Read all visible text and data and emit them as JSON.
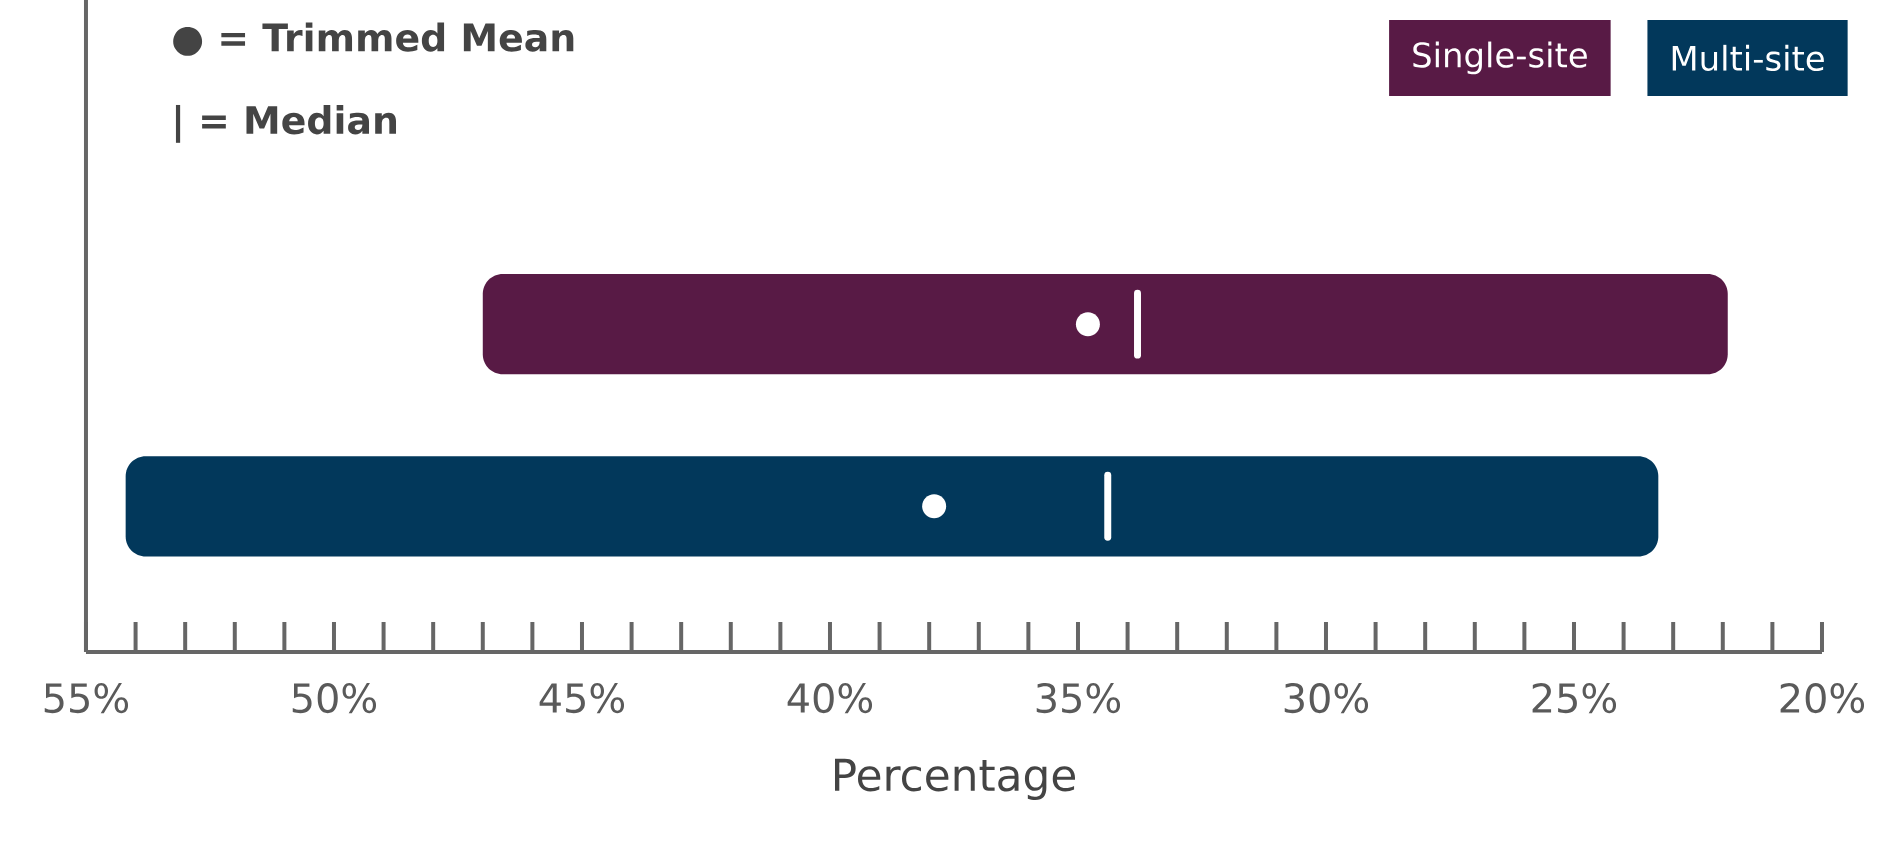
{
  "chart_data": {
    "type": "box",
    "orientation": "horizontal",
    "xlabel": "Percentage",
    "categories": [
      null
    ],
    "series": [
      {
        "name": "Single-site",
        "color": "#581a45",
        "boxes": [
          {
            "low": 21.9,
            "q1": 21.9,
            "median": 33.8,
            "q3": 47.0,
            "high": 47.0,
            "mean": 34.8
          }
        ]
      },
      {
        "name": "Multi-site",
        "color": "#02385b",
        "boxes": [
          {
            "low": 23.3,
            "q1": 23.3,
            "median": 34.4,
            "q3": 54.2,
            "high": 54.2,
            "mean": 37.9
          }
        ]
      }
    ],
    "xlim": [
      55,
      20
    ],
    "xticks": [
      {
        "value": 55,
        "label": "55%"
      },
      {
        "value": 54,
        "label": null
      },
      {
        "value": 53,
        "label": null
      },
      {
        "value": 52,
        "label": null
      },
      {
        "value": 51,
        "label": null
      },
      {
        "value": 50,
        "label": "50%"
      },
      {
        "value": 49,
        "label": null
      },
      {
        "value": 48,
        "label": null
      },
      {
        "value": 47,
        "label": null
      },
      {
        "value": 46,
        "label": null
      },
      {
        "value": 45,
        "label": "45%"
      },
      {
        "value": 44,
        "label": null
      },
      {
        "value": 43,
        "label": null
      },
      {
        "value": 42,
        "label": null
      },
      {
        "value": 41,
        "label": null
      },
      {
        "value": 40,
        "label": "40%"
      },
      {
        "value": 39,
        "label": null
      },
      {
        "value": 38,
        "label": null
      },
      {
        "value": 37,
        "label": null
      },
      {
        "value": 36,
        "label": null
      },
      {
        "value": 35,
        "label": "35%"
      },
      {
        "value": 34,
        "label": null
      },
      {
        "value": 33,
        "label": null
      },
      {
        "value": 32,
        "label": null
      },
      {
        "value": 31,
        "label": null
      },
      {
        "value": 30,
        "label": "30%"
      },
      {
        "value": 29,
        "label": null
      },
      {
        "value": 28,
        "label": null
      },
      {
        "value": 27,
        "label": null
      },
      {
        "value": 26,
        "label": null
      },
      {
        "value": 25,
        "label": "25%"
      },
      {
        "value": 24,
        "label": null
      },
      {
        "value": 23,
        "label": null
      },
      {
        "value": 22,
        "label": null
      },
      {
        "value": 21,
        "label": null
      },
      {
        "value": 20,
        "label": "20%"
      }
    ],
    "legend": "top right",
    "annotations": [
      "● = Trimmed Mean",
      "| = Median"
    ]
  }
}
